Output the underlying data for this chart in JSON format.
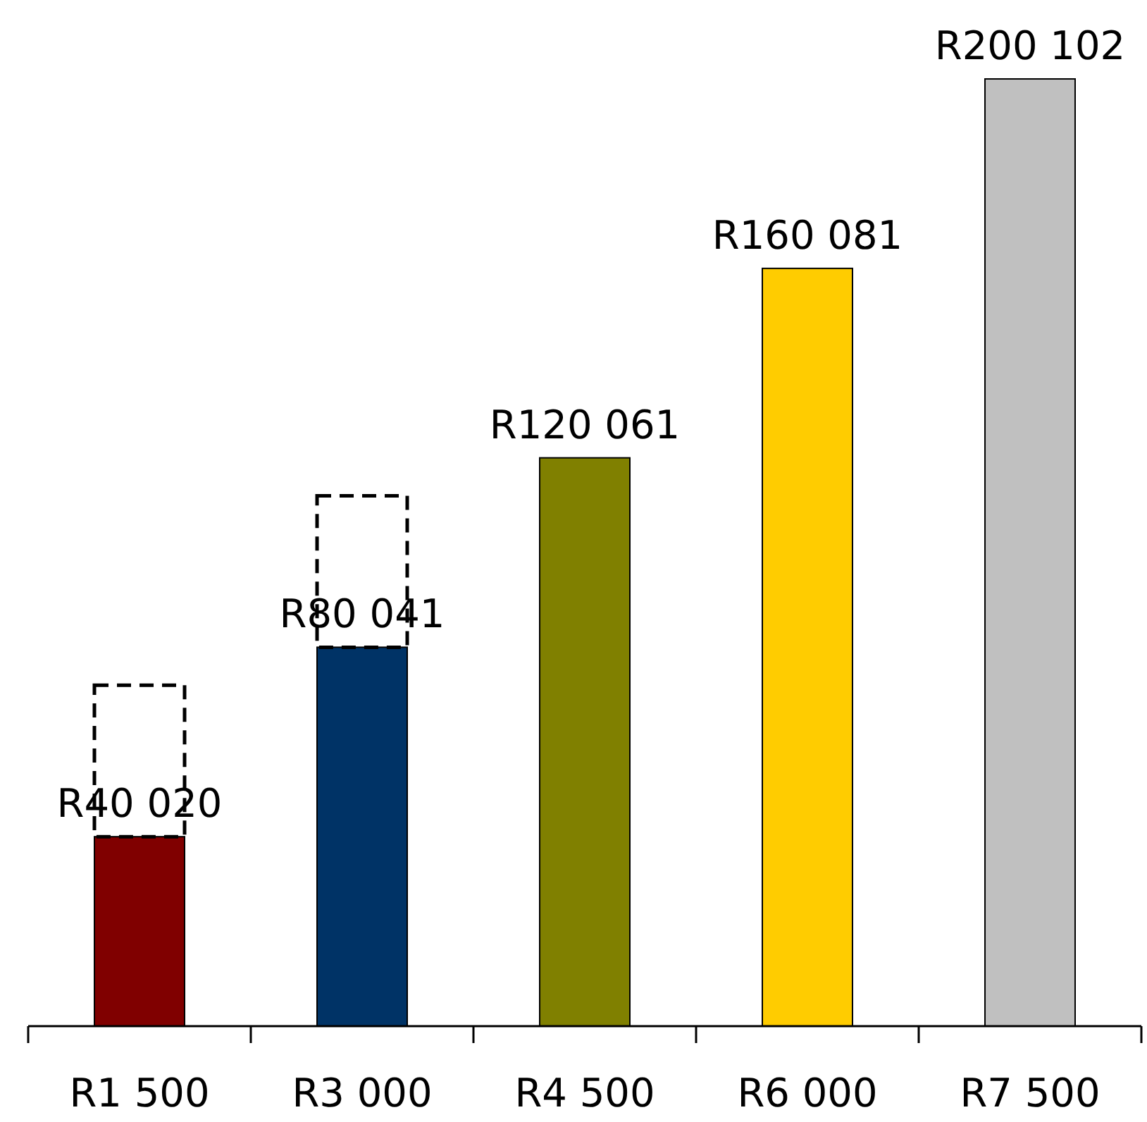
{
  "chart_data": {
    "type": "bar",
    "stacked": true,
    "categories": [
      "R1 500",
      "R3 000",
      "R4 500",
      "R6 000",
      "R7 500"
    ],
    "series": [
      {
        "values": [
          40020,
          80041,
          120061,
          160081,
          200102
        ],
        "value_labels": [
          "R40 020",
          "R80 041",
          "R120 061",
          "R160 081",
          "R200 102"
        ],
        "colors": [
          "#800000",
          "#003366",
          "#808000",
          "#ffcc00",
          "#c0c0c0"
        ]
      },
      {
        "values": [
          32000,
          32000,
          null,
          null,
          null
        ],
        "color": "#000000",
        "line_style": "dashed"
      }
    ]
  }
}
